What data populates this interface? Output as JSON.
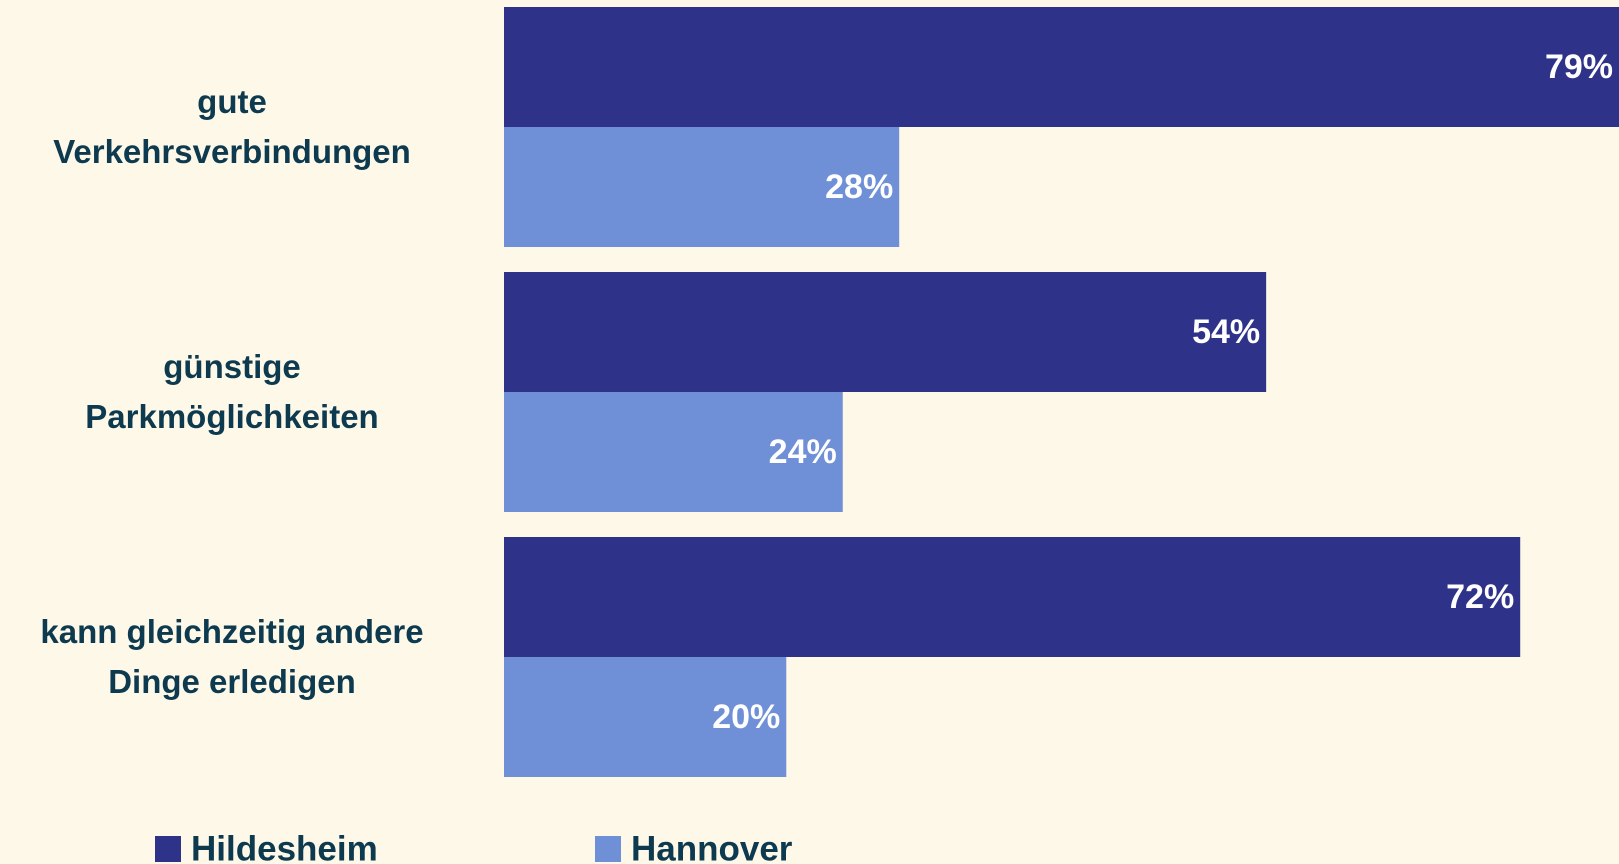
{
  "chart_data": {
    "type": "hbar",
    "categories": [
      "gute\nVerkehrsverbindungen",
      "günstige\nParkmöglichkeiten",
      "kann gleichzeitig andere\nDinge erledigen"
    ],
    "series": [
      {
        "name": "Hildesheim",
        "color": "#2e3389",
        "values": [
          79,
          54,
          72
        ],
        "value_labels": [
          "79%",
          "54%",
          "72%"
        ]
      },
      {
        "name": "Hannover",
        "color": "#6f8fd6",
        "values": [
          28,
          24,
          20
        ],
        "value_labels": [
          "28%",
          "24%",
          "20%"
        ]
      }
    ],
    "xlim": [
      0,
      79
    ],
    "legend": "bottom"
  }
}
